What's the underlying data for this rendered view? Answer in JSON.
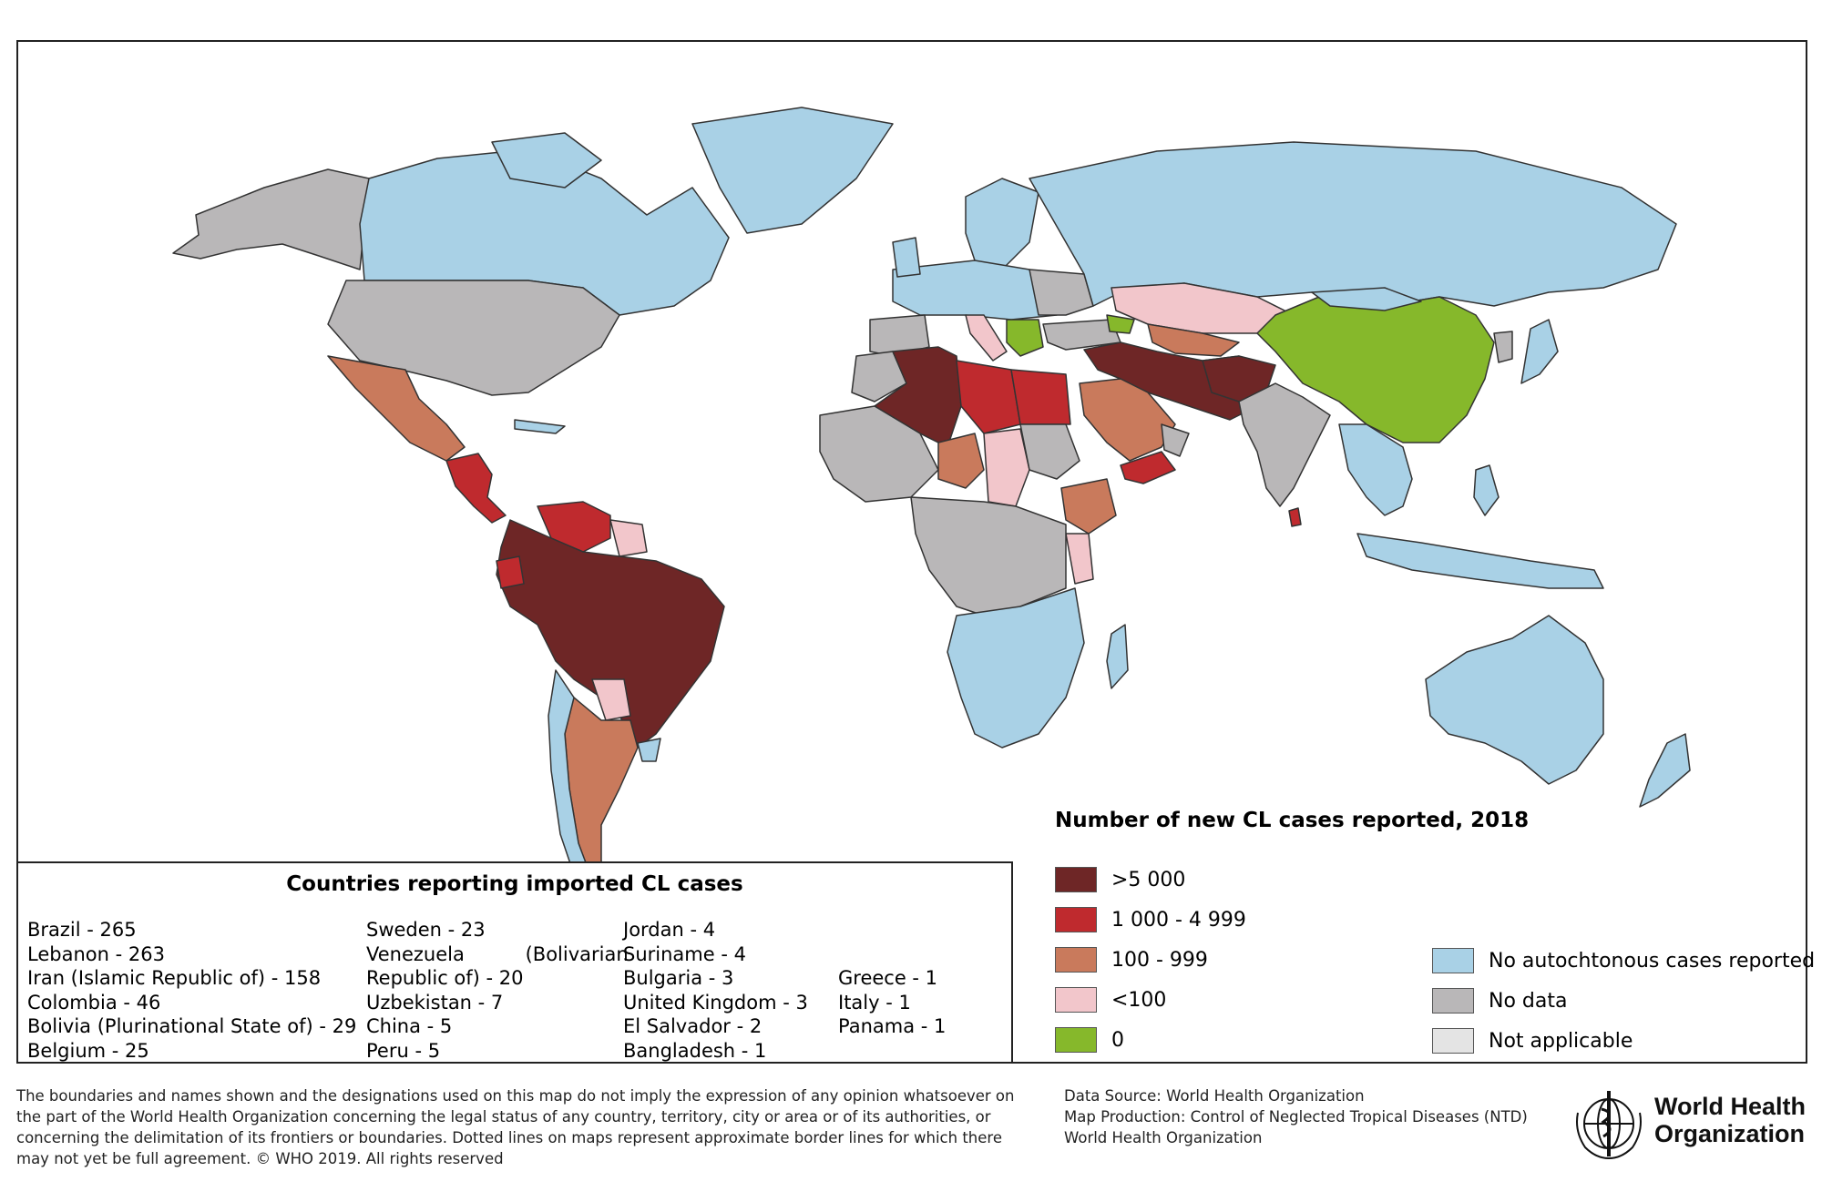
{
  "colors": {
    "gt5000": "#6e2626",
    "r1000_4999": "#bf2a2e",
    "r100_999": "#c97a5c",
    "lt100": "#f2c6cb",
    "zero": "#86b82b",
    "no_autochthonous": "#a9d1e6",
    "no_data": "#b9b7b8",
    "not_applicable": "#e4e4e4",
    "border": "#333333"
  },
  "legend": {
    "title": "Number of new CL cases reported, 2018",
    "items": [
      {
        "label": ">5 000",
        "color": "#6e2626"
      },
      {
        "label": "1 000 - 4 999",
        "color": "#bf2a2e"
      },
      {
        "label": "100 - 999",
        "color": "#c97a5c"
      },
      {
        "label": "<100",
        "color": "#f2c6cb"
      },
      {
        "label": "0",
        "color": "#86b82b"
      }
    ],
    "items_right": [
      {
        "label": "No autochtonous cases reported",
        "color": "#a9d1e6"
      },
      {
        "label": "No data",
        "color": "#b9b7b8"
      },
      {
        "label": "Not applicable",
        "color": "#e4e4e4"
      }
    ]
  },
  "imported": {
    "title": "Countries reporting imported CL cases",
    "col1": [
      "Brazil - 265",
      "Lebanon - 263",
      "Iran (Islamic Republic of) - 158",
      "Colombia - 46",
      "Bolivia (Plurinational State of) - 29",
      "Belgium - 25"
    ],
    "col2": [
      "Sweden - 23",
      "Venezuela          (Bolivarian",
      "Republic of) - 20",
      "Uzbekistan - 7",
      "China - 5",
      "Peru - 5"
    ],
    "col3": [
      "Jordan - 4",
      "Suriname - 4",
      "Bulgaria - 3",
      "United Kingdom - 3",
      "El Salvador - 2",
      "Bangladesh - 1"
    ],
    "col4": [
      "Greece - 1",
      "Italy - 1",
      "Panama - 1"
    ]
  },
  "footer": {
    "disclaimer": "The boundaries and names shown and the designations used on this map do not imply the expression of any opinion whatsoever on the part of the World Health Organization concerning the legal status of any country, territory, city or area or of its authorities, or concerning the delimitation of its frontiers or boundaries. Dotted lines on maps represent approximate border lines for which there may not yet be full agreement. © WHO 2019. All rights reserved",
    "credits": [
      "Data Source: World Health Organization",
      "Map Production: Control of Neglected Tropical Diseases (NTD)",
      "World Health Organization"
    ],
    "logo_line1": "World Health",
    "logo_line2": "Organization",
    "logo_icon": "who-emblem-icon"
  }
}
